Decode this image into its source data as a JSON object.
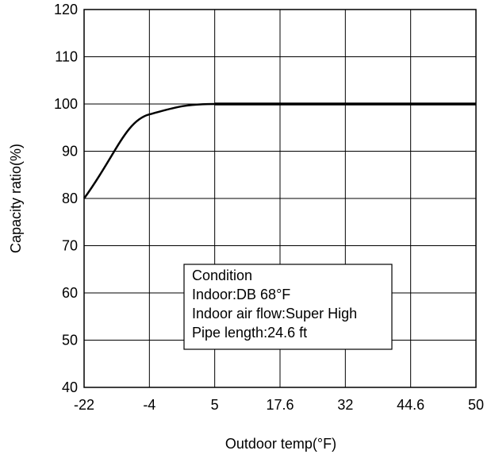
{
  "chart_data": {
    "type": "line",
    "xlabel": "Outdoor temp(°F)",
    "ylabel": "Capacity ratio(%)",
    "x_ticks": [
      "-22",
      "-4",
      "5",
      "17.6",
      "32",
      "44.6",
      "50"
    ],
    "y_ticks": [
      40,
      50,
      60,
      70,
      80,
      90,
      100,
      110,
      120
    ],
    "ylim": [
      40,
      120
    ],
    "grid": true,
    "series": [
      {
        "points": [
          {
            "x": "-22",
            "y": 80
          },
          {
            "x": "-4",
            "y": 97.8
          },
          {
            "x": "5",
            "y": 100
          },
          {
            "x": "17.6",
            "y": 100
          },
          {
            "x": "32",
            "y": 100
          },
          {
            "x": "44.6",
            "y": 100
          },
          {
            "x": "50",
            "y": 100
          }
        ]
      }
    ],
    "annotation": {
      "lines": [
        "Condition",
        "Indoor:DB 68°F",
        "Indoor air flow:Super High",
        "Pipe length:24.6 ft"
      ]
    },
    "colors": {
      "line": "#000000",
      "grid": "#000000",
      "background": "#ffffff"
    }
  }
}
